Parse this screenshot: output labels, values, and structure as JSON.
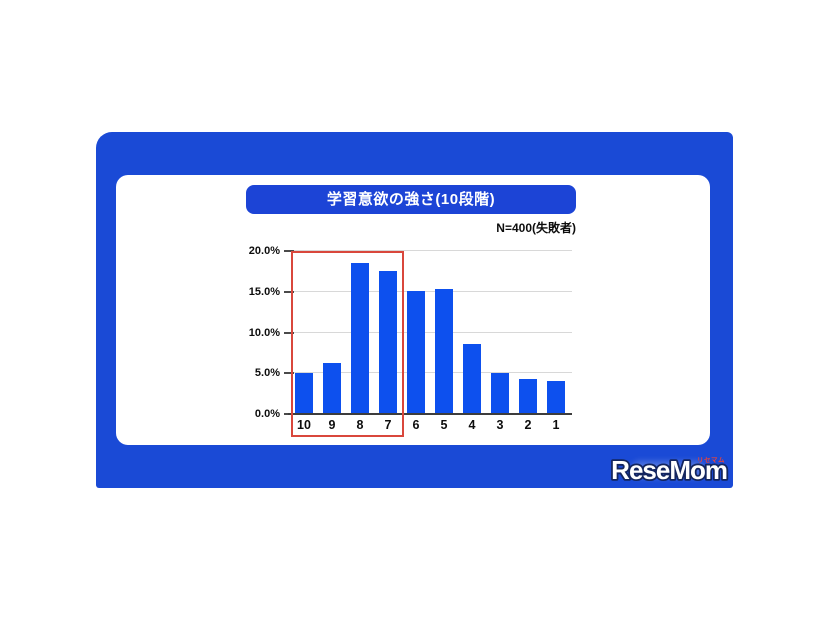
{
  "page": {
    "background": "#ffffff"
  },
  "frame": {
    "background": "#1a4ad6"
  },
  "header": {
    "title": "学習意欲の強さ(10段階)",
    "title_bg": "#1c44d6",
    "title_color": "#ffffff",
    "sample_note": "N=400(失敗者)"
  },
  "chart_data": {
    "type": "bar",
    "title": "学習意欲の強さ(10段階)",
    "sample_note": "N=400(失敗者)",
    "categories": [
      "10",
      "9",
      "8",
      "7",
      "6",
      "5",
      "4",
      "3",
      "2",
      "1"
    ],
    "values": [
      5.0,
      6.3,
      18.5,
      17.5,
      15.1,
      15.3,
      8.6,
      5.0,
      4.3,
      4.0
    ],
    "value_unit": "%",
    "xlabel": "",
    "ylabel": "",
    "ylim": [
      0,
      20
    ],
    "ytick_labels": [
      "0.0%",
      "5.0%",
      "10.0%",
      "15.0%",
      "20.0%"
    ],
    "grid": true,
    "legend": false,
    "bar_color": "#0d50ee",
    "gridline_color": "#d8d8d8",
    "axis_color": "#3d3d3d",
    "highlight_box": {
      "categories": [
        "10",
        "9",
        "8",
        "7"
      ],
      "border_color": "#d9473c"
    }
  },
  "logo": {
    "text": "ReseMom",
    "ruby": "リセマム"
  }
}
